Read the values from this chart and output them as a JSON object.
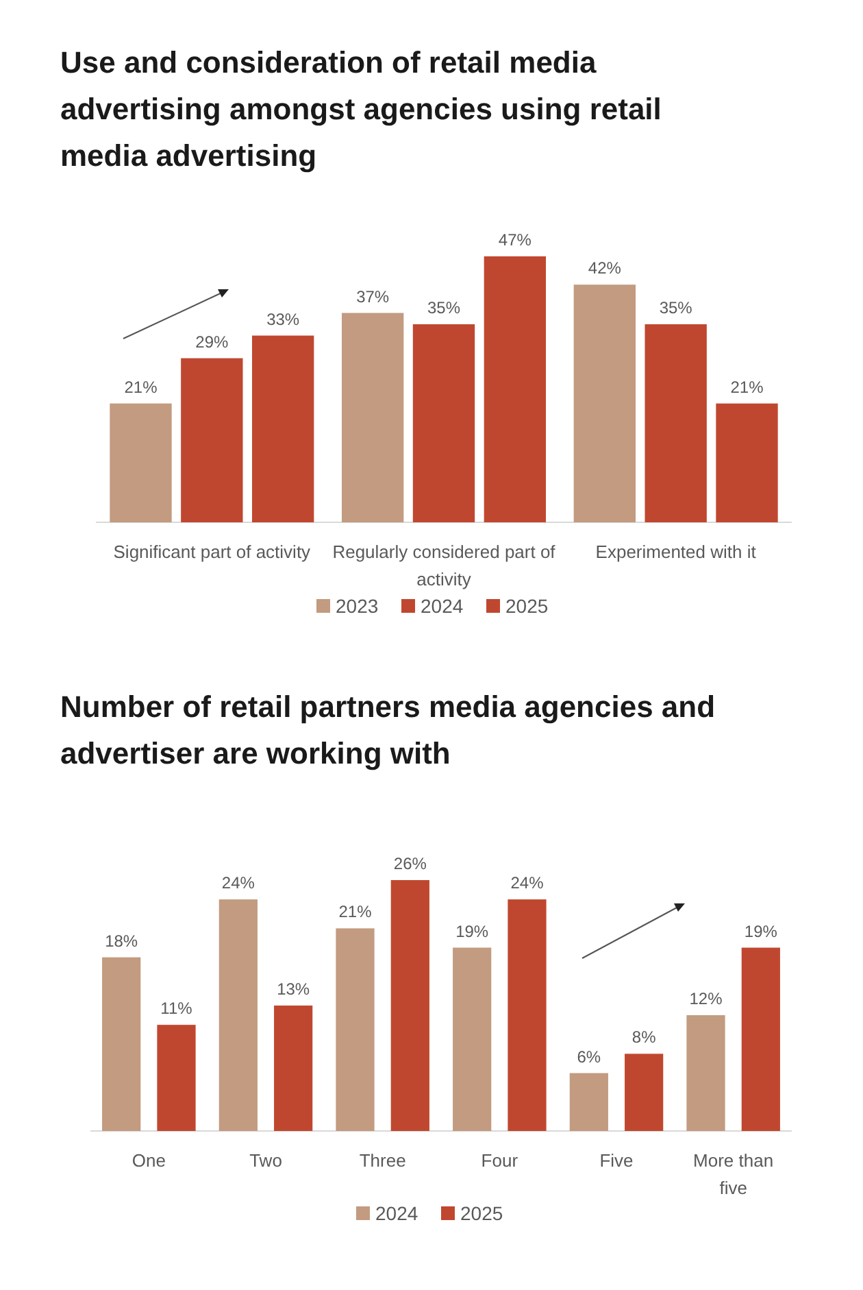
{
  "chart_data": [
    {
      "type": "bar",
      "title": "Use and consideration of retail media advertising amongst agencies using retail media advertising",
      "categories": [
        "Significant part of activity",
        "Regularly considered part of activity",
        "Experimented with it"
      ],
      "legend": "bottom",
      "series": [
        {
          "name": "2023",
          "color": "#c29b80",
          "values": [
            21,
            37,
            42
          ],
          "value_labels": [
            "21%",
            "37%",
            "42%"
          ]
        },
        {
          "name": "2024",
          "color": "#c0472f",
          "values": [
            29,
            35,
            35
          ],
          "value_labels": [
            "29%",
            "35%",
            "35%"
          ]
        },
        {
          "name": "2025",
          "color": "#c0472f",
          "values": [
            33,
            47,
            21
          ],
          "value_labels": [
            "33%",
            "47%",
            "21%"
          ]
        }
      ]
    },
    {
      "type": "bar",
      "title": "Number of retail partners media agencies and advertiser are working with",
      "categories": [
        "One",
        "Two",
        "Three",
        "Four",
        "Five",
        "More than five"
      ],
      "legend": "bottom",
      "series": [
        {
          "name": "2024",
          "color": "#c29b80",
          "values": [
            18,
            24,
            21,
            19,
            6,
            12
          ],
          "value_labels": [
            "18%",
            "24%",
            "21%",
            "19%",
            "6%",
            "12%"
          ]
        },
        {
          "name": "2025",
          "color": "#c0472f",
          "values": [
            11,
            13,
            26,
            24,
            8,
            19
          ],
          "value_labels": [
            "11%",
            "13%",
            "26%",
            "24%",
            "8%",
            "19%"
          ]
        }
      ]
    }
  ]
}
